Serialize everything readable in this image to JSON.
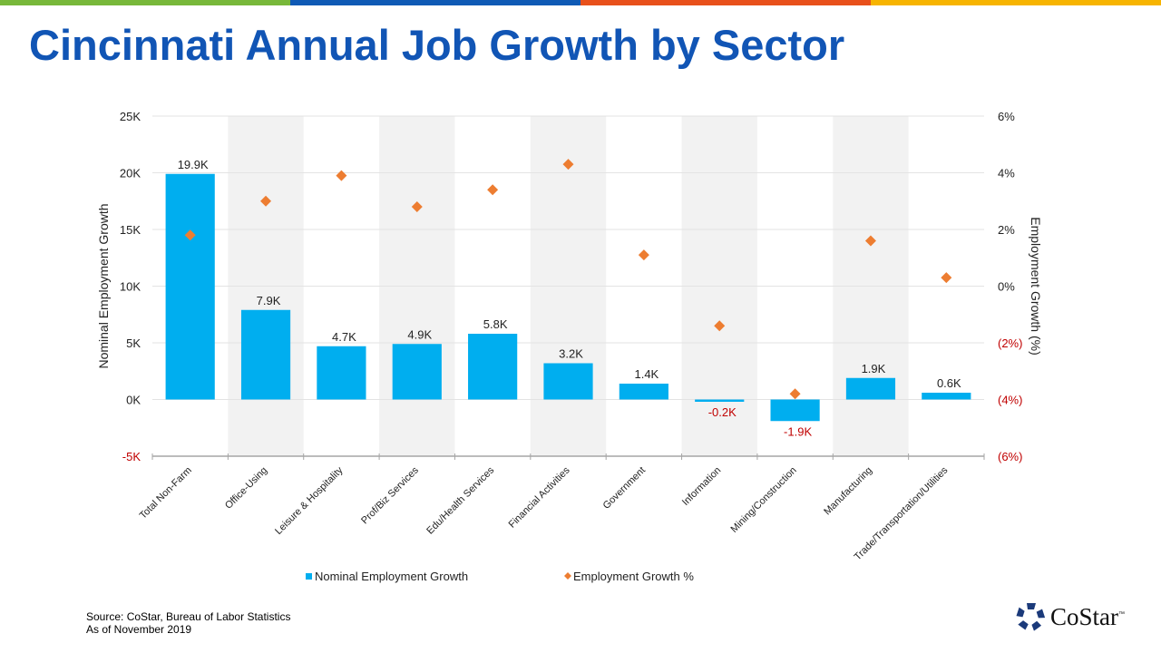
{
  "accent_colors": [
    "#78b83a",
    "#0f5ab5",
    "#e8501b",
    "#f7b400"
  ],
  "title": "Cincinnati Annual Job Growth by Sector",
  "chart_data": {
    "type": "bar",
    "categories": [
      "Total Non-Farm",
      "Office-Using",
      "Leisure & Hospitality",
      "Prof/Biz Services",
      "Edu/Health Services",
      "Financial Activities",
      "Government",
      "Information",
      "Mining/Construction",
      "Manufacturing",
      "Trade/Transportation/Utilities"
    ],
    "series": [
      {
        "name": "Nominal Employment Growth",
        "type": "bar",
        "axis": "left",
        "color": "#00aeef",
        "values": [
          19.9,
          7.9,
          4.7,
          4.9,
          5.8,
          3.2,
          1.4,
          -0.2,
          -1.9,
          1.9,
          0.6
        ],
        "labels": [
          "19.9K",
          "7.9K",
          "4.7K",
          "4.9K",
          "5.8K",
          "3.2K",
          "1.4K",
          "-0.2K",
          "-1.9K",
          "1.9K",
          "0.6K"
        ]
      },
      {
        "name": "Employment Growth %",
        "type": "scatter",
        "marker": "diamond",
        "axis": "right",
        "color": "#ed7d31",
        "values": [
          1.8,
          3.0,
          3.9,
          2.8,
          3.4,
          4.3,
          1.1,
          -1.4,
          -3.8,
          1.6,
          0.3
        ]
      }
    ],
    "ylabel": "Nominal Employment Growth",
    "y2label": "Employment Growth (%)",
    "ylim": [
      -5,
      25
    ],
    "y2lim": [
      -6,
      6
    ],
    "yticks": [
      "-5K",
      "0K",
      "5K",
      "10K",
      "15K",
      "20K",
      "25K"
    ],
    "y2ticks": [
      "(6%)",
      "(4%)",
      "(2%)",
      "0%",
      "2%",
      "4%",
      "6%"
    ],
    "negative_color": "#c00000",
    "grid": true,
    "legend": "bottom"
  },
  "source": "Source: CoStar, Bureau of Labor Statistics",
  "as_of": "As of November 2019",
  "logo_text": "CoStar"
}
